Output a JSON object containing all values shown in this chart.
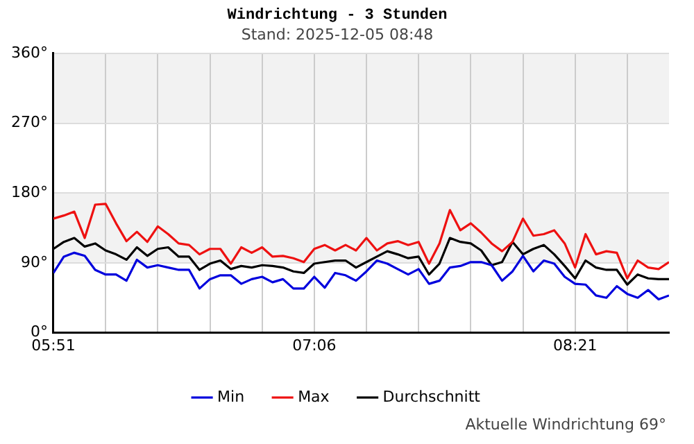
{
  "chart_data": {
    "type": "line",
    "title": "Windrichtung - 3 Stunden",
    "subtitle": "Stand: 2025-12-05 08:48",
    "x": [
      5.85,
      5.9,
      5.95,
      6.0,
      6.05,
      6.1,
      6.15,
      6.2,
      6.25,
      6.3,
      6.35,
      6.4,
      6.45,
      6.5,
      6.55,
      6.6,
      6.65,
      6.7,
      6.75,
      6.8,
      6.85,
      6.9,
      6.95,
      7.0,
      7.05,
      7.1,
      7.15,
      7.2,
      7.25,
      7.3,
      7.35,
      7.4,
      7.45,
      7.5,
      7.55,
      7.6,
      7.65,
      7.7,
      7.75,
      7.8,
      7.85,
      7.9,
      7.95,
      8.0,
      8.05,
      8.1,
      8.15,
      8.2,
      8.25,
      8.3,
      8.35,
      8.4,
      8.45,
      8.5,
      8.55,
      8.6,
      8.65,
      8.7,
      8.75,
      8.8
    ],
    "series": [
      {
        "name": "Min",
        "color": "#0000dd",
        "values": [
          77,
          98,
          103,
          99,
          81,
          75,
          75,
          67,
          94,
          84,
          87,
          84,
          81,
          81,
          57,
          69,
          74,
          74,
          63,
          69,
          72,
          65,
          69,
          57,
          57,
          72,
          58,
          77,
          74,
          67,
          79,
          93,
          89,
          82,
          75,
          82,
          63,
          67,
          84,
          86,
          91,
          91,
          87,
          67,
          79,
          99,
          79,
          93,
          89,
          72,
          63,
          62,
          48,
          45,
          60,
          50,
          45,
          55,
          43,
          48
        ]
      },
      {
        "name": "Max",
        "color": "#ee1111",
        "values": [
          147,
          151,
          156,
          122,
          165,
          166,
          141,
          118,
          130,
          117,
          137,
          127,
          115,
          113,
          101,
          108,
          108,
          89,
          110,
          103,
          110,
          98,
          99,
          96,
          91,
          108,
          113,
          106,
          113,
          106,
          122,
          106,
          115,
          118,
          113,
          117,
          89,
          115,
          158,
          132,
          141,
          129,
          115,
          105,
          117,
          147,
          125,
          127,
          132,
          115,
          84,
          127,
          101,
          105,
          103,
          70,
          93,
          84,
          82,
          91
        ]
      },
      {
        "name": "Durchschnitt",
        "color": "#000000",
        "values": [
          108,
          117,
          122,
          111,
          115,
          106,
          101,
          94,
          110,
          99,
          108,
          110,
          98,
          98,
          81,
          89,
          93,
          82,
          86,
          84,
          87,
          86,
          84,
          79,
          77,
          89,
          91,
          93,
          93,
          84,
          91,
          98,
          105,
          101,
          96,
          98,
          75,
          89,
          122,
          117,
          115,
          106,
          87,
          91,
          117,
          101,
          108,
          113,
          101,
          86,
          70,
          93,
          84,
          81,
          81,
          62,
          75,
          70,
          69,
          69
        ]
      }
    ],
    "xlim": [
      5.85,
      8.8
    ],
    "xticks": [
      {
        "value": 5.85,
        "label": "05:51"
      },
      {
        "value": 6.1,
        "label": null
      },
      {
        "value": 6.35,
        "label": null
      },
      {
        "value": 6.6,
        "label": null
      },
      {
        "value": 6.85,
        "label": null
      },
      {
        "value": 7.1,
        "label": "07:06"
      },
      {
        "value": 7.35,
        "label": null
      },
      {
        "value": 7.6,
        "label": null
      },
      {
        "value": 7.85,
        "label": null
      },
      {
        "value": 8.1,
        "label": null
      },
      {
        "value": 8.35,
        "label": "08:21"
      },
      {
        "value": 8.6,
        "label": null
      }
    ],
    "ylim": [
      0,
      360
    ],
    "yticks": [
      {
        "value": 0,
        "label": "0°"
      },
      {
        "value": 90,
        "label": "90°"
      },
      {
        "value": 180,
        "label": "180°"
      },
      {
        "value": 270,
        "label": "270°"
      },
      {
        "value": 360,
        "label": "360°"
      }
    ],
    "bands": [
      {
        "axis": "y",
        "from": 90,
        "to": 180,
        "color": "#f2f2f2"
      },
      {
        "axis": "y",
        "from": 270,
        "to": 360,
        "color": "#f2f2f2"
      }
    ],
    "annotations": [
      "Aktuelle Windrichtung 69°"
    ],
    "grid": true,
    "legend": "bottom",
    "marker": "none",
    "line_style": "solid"
  }
}
